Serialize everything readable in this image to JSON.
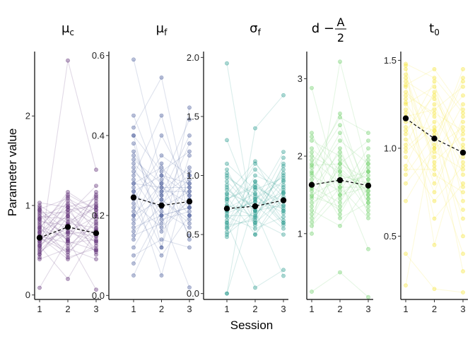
{
  "chart_data": {
    "type": "line",
    "xlabel": "Session",
    "ylabel": "Parameter value",
    "x": [
      1,
      2,
      3
    ],
    "panels": [
      {
        "title_main": "μ",
        "title_sub": "c",
        "color": "#5b2a73",
        "ylim": [
          -0.05,
          2.72
        ],
        "yticks": [
          0,
          1,
          2
        ],
        "ytick_labels": [
          "0",
          "1",
          "2"
        ],
        "mean": [
          0.64,
          0.76,
          0.69
        ],
        "subjects": [
          [
            0.08,
            0.62,
            0.06
          ],
          [
            0.42,
            2.62,
            1.4
          ],
          [
            0.55,
            0.18,
            0.72
          ],
          [
            0.75,
            1.12,
            0.95
          ],
          [
            0.6,
            0.9,
            1.22
          ],
          [
            0.98,
            0.6,
            0.5
          ],
          [
            0.5,
            0.78,
            1.1
          ],
          [
            0.7,
            1.0,
            0.45
          ],
          [
            0.9,
            0.55,
            0.8
          ],
          [
            0.48,
            0.7,
            0.6
          ],
          [
            0.85,
            0.95,
            1.0
          ],
          [
            0.65,
            0.4,
            0.55
          ],
          [
            1.0,
            0.8,
            0.75
          ],
          [
            0.58,
            1.05,
            0.88
          ],
          [
            0.78,
            0.62,
            1.05
          ],
          [
            0.45,
            0.88,
            0.5
          ],
          [
            0.95,
            0.72,
            0.65
          ],
          [
            0.68,
            0.5,
            0.92
          ],
          [
            0.52,
            0.98,
            0.78
          ],
          [
            0.88,
            0.85,
            0.58
          ],
          [
            0.72,
            0.65,
            1.12
          ],
          [
            0.62,
            1.1,
            0.7
          ],
          [
            0.8,
            0.45,
            0.85
          ],
          [
            0.56,
            0.75,
            0.48
          ],
          [
            0.92,
            0.92,
            1.02
          ],
          [
            0.66,
            0.58,
            0.62
          ],
          [
            0.74,
            1.15,
            0.95
          ],
          [
            0.84,
            0.68,
            0.72
          ],
          [
            1.03,
            0.98,
            1.08
          ],
          [
            0.4,
            0.52,
            0.4
          ],
          [
            0.46,
            0.82,
            0.98
          ],
          [
            0.76,
            0.42,
            0.52
          ],
          [
            0.86,
            1.02,
            0.82
          ],
          [
            0.6,
            0.7,
            0.88
          ],
          [
            0.94,
            0.6,
            1.15
          ],
          [
            0.7,
            0.88,
            0.66
          ],
          [
            0.54,
            0.95,
            0.6
          ],
          [
            0.82,
            0.78,
            0.98
          ],
          [
            0.64,
            0.48,
            0.74
          ],
          [
            0.96,
            1.08,
            0.9
          ]
        ]
      },
      {
        "title_main": "μ",
        "title_sub": "f",
        "color": "#4a5c9a",
        "ylim": [
          -0.01,
          0.61
        ],
        "yticks": [
          0.0,
          0.2,
          0.4,
          0.6
        ],
        "ytick_labels": [
          "0.0",
          "0.2",
          "0.4",
          "0.6"
        ],
        "mean": [
          0.245,
          0.225,
          0.235
        ],
        "subjects": [
          [
            0.59,
            0.3,
            0.25
          ],
          [
            0.42,
            0.545,
            0.22
          ],
          [
            0.4,
            0.12,
            0.47
          ],
          [
            0.05,
            0.2,
            0.02
          ],
          [
            0.35,
            0.25,
            0.3
          ],
          [
            0.3,
            0.45,
            0.2
          ],
          [
            0.25,
            0.22,
            0.38
          ],
          [
            0.2,
            0.28,
            0.15
          ],
          [
            0.15,
            0.18,
            0.28
          ],
          [
            0.28,
            0.32,
            0.25
          ],
          [
            0.22,
            0.1,
            0.2
          ],
          [
            0.18,
            0.26,
            0.32
          ],
          [
            0.32,
            0.2,
            0.22
          ],
          [
            0.12,
            0.24,
            0.18
          ],
          [
            0.26,
            0.3,
            0.28
          ],
          [
            0.38,
            0.16,
            0.24
          ],
          [
            0.24,
            0.35,
            0.3
          ],
          [
            0.1,
            0.14,
            0.12
          ],
          [
            0.34,
            0.28,
            0.44
          ],
          [
            0.16,
            0.22,
            0.26
          ],
          [
            0.29,
            0.19,
            0.21
          ],
          [
            0.21,
            0.4,
            0.27
          ],
          [
            0.45,
            0.27,
            0.23
          ],
          [
            0.27,
            0.12,
            0.35
          ],
          [
            0.08,
            0.21,
            0.17
          ],
          [
            0.31,
            0.25,
            0.4
          ],
          [
            0.19,
            0.33,
            0.14
          ],
          [
            0.36,
            0.23,
            0.29
          ],
          [
            0.23,
            0.17,
            0.24
          ],
          [
            0.14,
            0.29,
            0.2
          ],
          [
            0.33,
            0.26,
            0.26
          ],
          [
            0.26,
            0.05,
            0.31
          ],
          [
            0.2,
            0.24,
            0.19
          ],
          [
            0.4,
            0.31,
            0.36
          ],
          [
            0.17,
            0.2,
            0.22
          ],
          [
            0.28,
            0.27,
            0.27
          ]
        ]
      },
      {
        "title_main": "σ",
        "title_sub": "f",
        "color": "#2a9a8f",
        "ylim": [
          -0.05,
          2.05
        ],
        "yticks": [
          0.0,
          0.5,
          1.0,
          1.5,
          2.0
        ],
        "ytick_labels": [
          "0.0",
          "0.5",
          "1.0",
          "1.5",
          "2.0"
        ],
        "mean": [
          0.72,
          0.74,
          0.79
        ],
        "subjects": [
          [
            1.95,
            0.5,
            0.8
          ],
          [
            0.0,
            1.4,
            1.68
          ],
          [
            0.6,
            0.05,
            0.2
          ],
          [
            1.3,
            0.7,
            0.15
          ],
          [
            0.0,
            0.8,
            1.0
          ],
          [
            0.8,
            0.9,
            0.6
          ],
          [
            0.9,
            0.6,
            1.1
          ],
          [
            0.5,
            0.7,
            0.75
          ],
          [
            0.7,
            1.1,
            0.85
          ],
          [
            0.65,
            0.55,
            0.65
          ],
          [
            1.0,
            0.8,
            0.95
          ],
          [
            0.55,
            0.95,
            0.7
          ],
          [
            0.75,
            0.65,
            1.05
          ],
          [
            0.85,
            0.75,
            0.55
          ],
          [
            0.6,
            1.0,
            0.9
          ],
          [
            1.05,
            0.6,
            0.8
          ],
          [
            0.72,
            0.85,
            0.6
          ],
          [
            0.95,
            0.7,
            1.15
          ],
          [
            0.48,
            0.9,
            0.78
          ],
          [
            0.82,
            0.5,
            0.88
          ],
          [
            0.68,
            0.78,
            0.72
          ],
          [
            1.1,
            0.88,
            0.98
          ],
          [
            0.58,
            0.62,
            0.5
          ],
          [
            0.78,
            1.05,
            0.82
          ],
          [
            0.88,
            0.72,
            1.02
          ],
          [
            0.62,
            0.82,
            0.68
          ],
          [
            0.92,
            0.58,
            0.92
          ],
          [
            0.52,
            0.95,
            0.62
          ],
          [
            1.02,
            0.68,
            0.85
          ],
          [
            0.7,
            0.78,
            1.2
          ],
          [
            0.8,
            0.92,
            0.74
          ],
          [
            0.66,
            0.66,
            0.96
          ],
          [
            0.98,
            0.84,
            0.58
          ],
          [
            0.74,
            0.74,
            0.86
          ],
          [
            0.84,
            1.12,
            0.7
          ],
          [
            0.56,
            0.64,
            1.08
          ]
        ]
      },
      {
        "title_main": "d − A/2",
        "color": "#6fcf6a",
        "ylim": [
          0.15,
          3.35
        ],
        "yticks": [
          1,
          2,
          3
        ],
        "ytick_labels": [
          "1",
          "2",
          "3"
        ],
        "mean": [
          1.63,
          1.69,
          1.62
        ],
        "subjects": [
          [
            2.88,
            1.5,
            1.6
          ],
          [
            1.0,
            3.22,
            1.8
          ],
          [
            0.25,
            0.5,
            0.18
          ],
          [
            1.9,
            2.5,
            2.3
          ],
          [
            1.5,
            1.7,
            0.8
          ],
          [
            1.8,
            1.2,
            1.4
          ],
          [
            1.2,
            1.9,
            1.7
          ],
          [
            1.6,
            1.4,
            2.0
          ],
          [
            2.2,
            2.0,
            1.5
          ],
          [
            1.4,
            1.6,
            1.2
          ],
          [
            1.7,
            2.2,
            1.9
          ],
          [
            1.3,
            1.1,
            1.6
          ],
          [
            2.0,
            1.8,
            1.3
          ],
          [
            1.1,
            1.5,
            1.8
          ],
          [
            1.85,
            2.4,
            1.55
          ],
          [
            1.55,
            1.3,
            1.95
          ],
          [
            2.1,
            1.75,
            1.65
          ],
          [
            1.25,
            1.95,
            1.45
          ],
          [
            1.75,
            1.55,
            2.1
          ],
          [
            1.45,
            2.1,
            1.25
          ],
          [
            1.95,
            1.65,
            1.75
          ],
          [
            1.35,
            1.85,
            1.5
          ],
          [
            2.3,
            1.45,
            1.85
          ],
          [
            1.65,
            2.3,
            1.35
          ],
          [
            1.15,
            1.6,
            1.6
          ],
          [
            2.05,
            1.25,
            1.9
          ],
          [
            1.58,
            2.05,
            1.4
          ],
          [
            1.88,
            1.9,
            2.2
          ],
          [
            1.48,
            1.35,
            1.7
          ],
          [
            2.25,
            1.8,
            1.55
          ],
          [
            1.62,
            1.7,
            1.8
          ],
          [
            1.78,
            2.55,
            1.45
          ]
        ]
      },
      {
        "title_main": "t",
        "title_sub": "0",
        "color": "#f5e63a",
        "ylim": [
          0.14,
          1.55
        ],
        "yticks": [
          0.5,
          1.0,
          1.5
        ],
        "ytick_labels": [
          "0.5",
          "1.0",
          "1.5"
        ],
        "mean": [
          1.17,
          1.055,
          0.975
        ],
        "subjects": [
          [
            0.22,
            1.1,
            0.3
          ],
          [
            0.4,
            0.2,
            0.18
          ],
          [
            1.48,
            1.4,
            1.2
          ],
          [
            1.4,
            0.9,
            0.65
          ],
          [
            1.3,
            1.2,
            1.1
          ],
          [
            1.1,
            1.3,
            0.95
          ],
          [
            1.2,
            0.8,
            1.15
          ],
          [
            1.0,
            1.15,
            0.5
          ],
          [
            1.45,
            1.05,
            1.4
          ],
          [
            0.9,
            1.25,
            0.85
          ],
          [
            1.35,
            0.95,
            1.25
          ],
          [
            1.25,
            1.35,
            1.05
          ],
          [
            0.95,
            0.7,
            0.9
          ],
          [
            1.15,
            1.1,
            1.3
          ],
          [
            1.05,
            0.85,
            0.75
          ],
          [
            1.38,
            1.28,
            1.0
          ],
          [
            0.8,
            1.0,
            1.12
          ],
          [
            1.28,
            0.6,
            0.8
          ],
          [
            1.18,
            1.22,
            1.35
          ],
          [
            0.85,
            1.08,
            0.6
          ],
          [
            1.42,
            0.92,
            1.08
          ],
          [
            1.08,
            1.38,
            0.7
          ],
          [
            1.22,
            1.02,
            1.45
          ],
          [
            0.7,
            0.98,
            0.88
          ],
          [
            1.32,
            1.18,
            0.92
          ],
          [
            1.12,
            0.75,
            1.18
          ],
          [
            1.02,
            1.32,
            0.98
          ],
          [
            1.47,
            0.45,
            1.02
          ],
          [
            0.98,
            1.12,
            0.78
          ],
          [
            1.36,
            1.45,
            1.22
          ],
          [
            0.88,
            0.88,
            0.4
          ],
          [
            1.26,
            1.0,
            1.38
          ]
        ]
      }
    ]
  }
}
